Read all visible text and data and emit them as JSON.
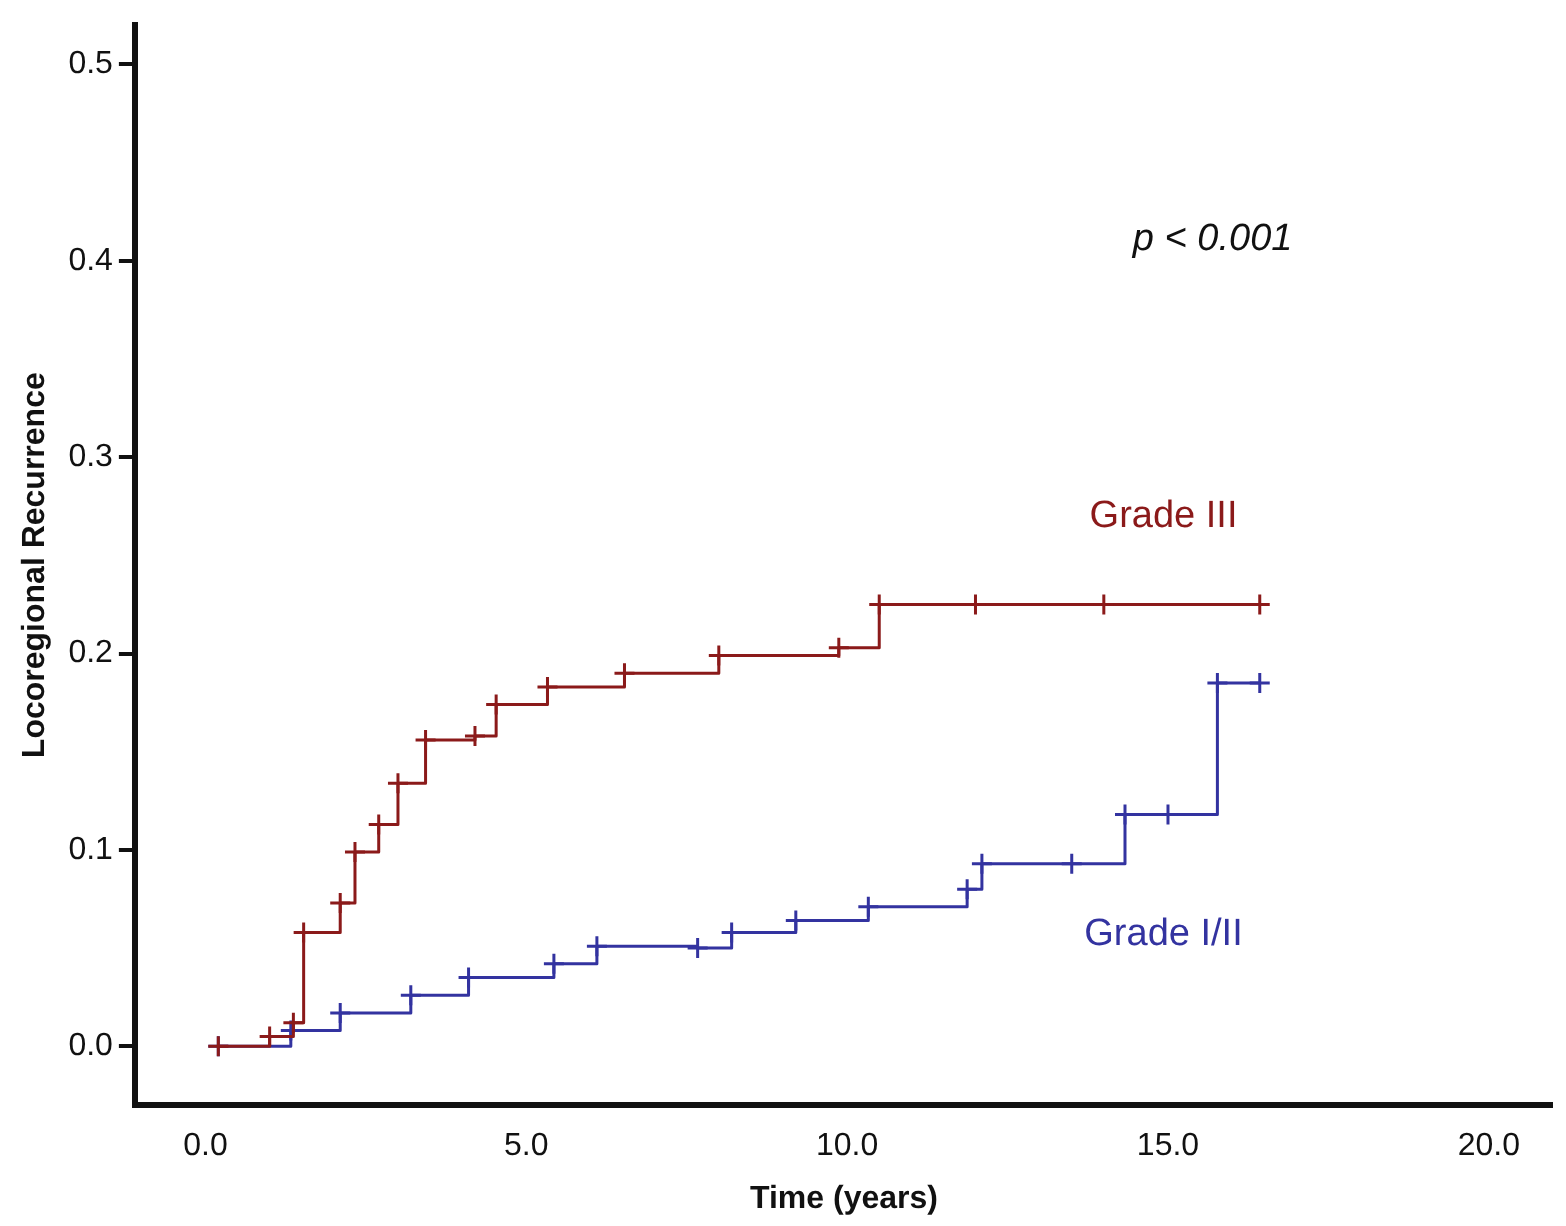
{
  "chart_data": {
    "type": "step",
    "xlabel": "Time (years)",
    "ylabel": "Locoregional Recurrence",
    "xlim": [
      -1.1,
      21
    ],
    "ylim": [
      -0.03,
      0.52
    ],
    "xticks": [
      {
        "value": 0,
        "label": "0.0"
      },
      {
        "value": 5,
        "label": "5.0"
      },
      {
        "value": 10,
        "label": "10.0"
      },
      {
        "value": 15,
        "label": "15.0"
      },
      {
        "value": 20,
        "label": "20.0"
      }
    ],
    "yticks": [
      {
        "value": 0,
        "label": "0.0"
      },
      0.1,
      0.2,
      0.3,
      0.4,
      0.5
    ],
    "marker": "cross",
    "grid": false,
    "legend": false,
    "annotations": [
      "p < 0.001"
    ],
    "series": [
      {
        "name": "Grade III",
        "color": "#8b1a1a",
        "x": [
          0.2,
          1.0,
          1.37,
          1.53,
          2.1,
          2.33,
          2.7,
          3.0,
          3.43,
          4.2,
          4.53,
          5.33,
          6.53,
          8.0,
          9.87,
          10.5,
          12.0,
          14.0,
          16.43
        ],
        "values": [
          0,
          0.005,
          0.012,
          0.058,
          0.073,
          0.099,
          0.113,
          0.134,
          0.156,
          0.158,
          0.174,
          0.183,
          0.19,
          0.199,
          0.203,
          0.225,
          0.225,
          0.225,
          0.225
        ]
      },
      {
        "name": "Grade I/II",
        "color": "#3333a0",
        "x": [
          0.2,
          1.33,
          2.1,
          3.2,
          4.1,
          5.43,
          6.1,
          7.67,
          8.2,
          9.2,
          10.33,
          11.87,
          12.1,
          13.5,
          14.33,
          15.0,
          15.77,
          16.43
        ],
        "values": [
          0,
          0.008,
          0.017,
          0.026,
          0.035,
          0.042,
          0.051,
          0.05,
          0.058,
          0.064,
          0.071,
          0.08,
          0.093,
          0.093,
          0.118,
          0.118,
          0.185,
          0.185
        ]
      }
    ]
  }
}
